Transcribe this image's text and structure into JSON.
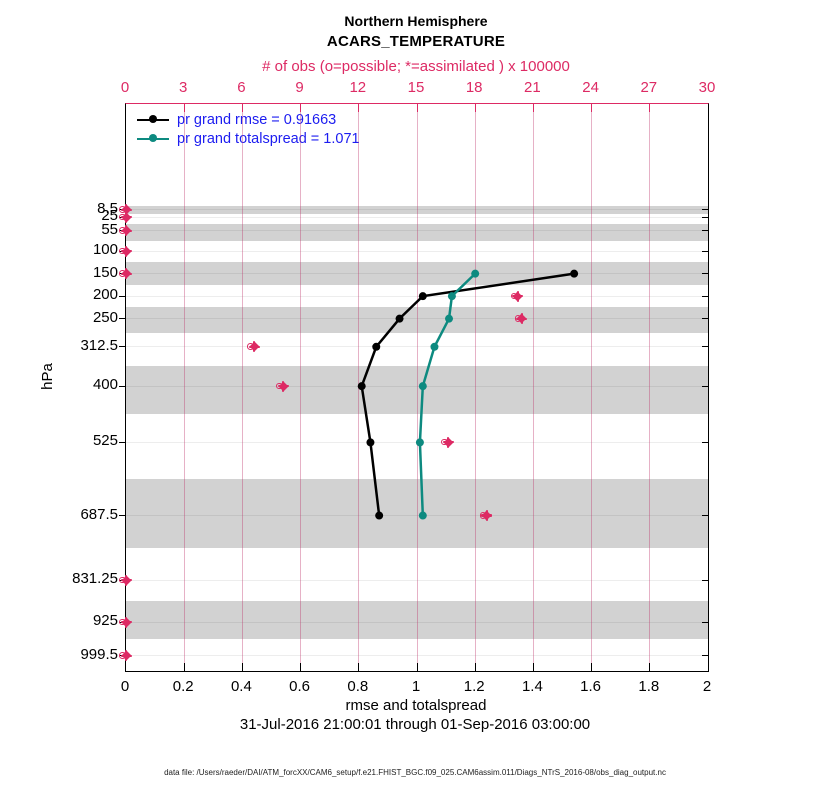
{
  "title": {
    "line1": "Northern Hemisphere",
    "line2": "ACARS_TEMPERATURE"
  },
  "colors": {
    "magenta": "#dd2a64",
    "teal": "#0d8a80",
    "rmse_black": "#000000",
    "legend_text_blue": "#1c1cf0",
    "band_gray": "#d2d2d2"
  },
  "top_axis": {
    "label": "# of obs (o=possible; *=assimilated ) x 100000",
    "ticks": [
      "0",
      "3",
      "6",
      "9",
      "12",
      "15",
      "18",
      "21",
      "24",
      "27",
      "30"
    ]
  },
  "bottom_axis": {
    "label": "rmse and totalspread",
    "ticks": [
      "0",
      "0.2",
      "0.4",
      "0.6",
      "0.8",
      "1",
      "1.2",
      "1.4",
      "1.6",
      "1.8",
      "2"
    ]
  },
  "left_axis": {
    "label": "hPa"
  },
  "legend": [
    {
      "label": "pr grand rmse = 0.91663",
      "color": "#000000"
    },
    {
      "label": "pr grand totalspread = 1.071",
      "color": "#0d8a80"
    }
  ],
  "footer": {
    "date_range": "31-Jul-2016 21:00:01 through 01-Sep-2016 03:00:00",
    "data_file": "data file: /Users/raeder/DAI/ATM_forcXX/CAM6_setup/f.e21.FHIST_BGC.f09_025.CAM6assim.011/Diags_NTrS_2016-08/obs_diag_output.nc"
  },
  "chart_data": {
    "type": "line",
    "title": "Northern Hemisphere ACARS_TEMPERATURE",
    "xlabel": "rmse and totalspread",
    "x2label": "# of obs (o=possible; *=assimilated ) x 100000",
    "ylabel": "hPa",
    "xlim": [
      0,
      2
    ],
    "x2lim": [
      0,
      30
    ],
    "y_axis_reversed_pressure": true,
    "pressure_levels": [
      8.5,
      25,
      55,
      100,
      150,
      200,
      250,
      312.5,
      400,
      525,
      687.5,
      831.25,
      925,
      999.5
    ],
    "series": [
      {
        "name": "pr grand rmse = 0.91663",
        "color": "#000000",
        "levels": [
          150,
          200,
          250,
          312.5,
          400,
          525,
          687.5
        ],
        "values": [
          1.54,
          1.02,
          0.94,
          0.86,
          0.81,
          0.84,
          0.87
        ]
      },
      {
        "name": "pr grand totalspread = 1.071",
        "color": "#0d8a80",
        "levels": [
          150,
          200,
          250,
          312.5,
          400,
          525,
          687.5
        ],
        "values": [
          1.2,
          1.12,
          1.11,
          1.06,
          1.02,
          1.01,
          1.02
        ]
      }
    ],
    "obs_counts_x100000": {
      "levels": [
        8.5,
        25,
        55,
        100,
        150,
        200,
        250,
        312.5,
        400,
        525,
        687.5,
        831.25,
        925,
        999.5
      ],
      "values": [
        0,
        0,
        0,
        0,
        0,
        20.2,
        20.4,
        6.6,
        8.1,
        16.6,
        18.6,
        0,
        0,
        0
      ]
    },
    "shaded_band_levels": [
      8.5,
      55,
      150,
      250,
      400,
      687.5,
      925
    ],
    "grid": true,
    "legend_position": "top-left-inside"
  }
}
